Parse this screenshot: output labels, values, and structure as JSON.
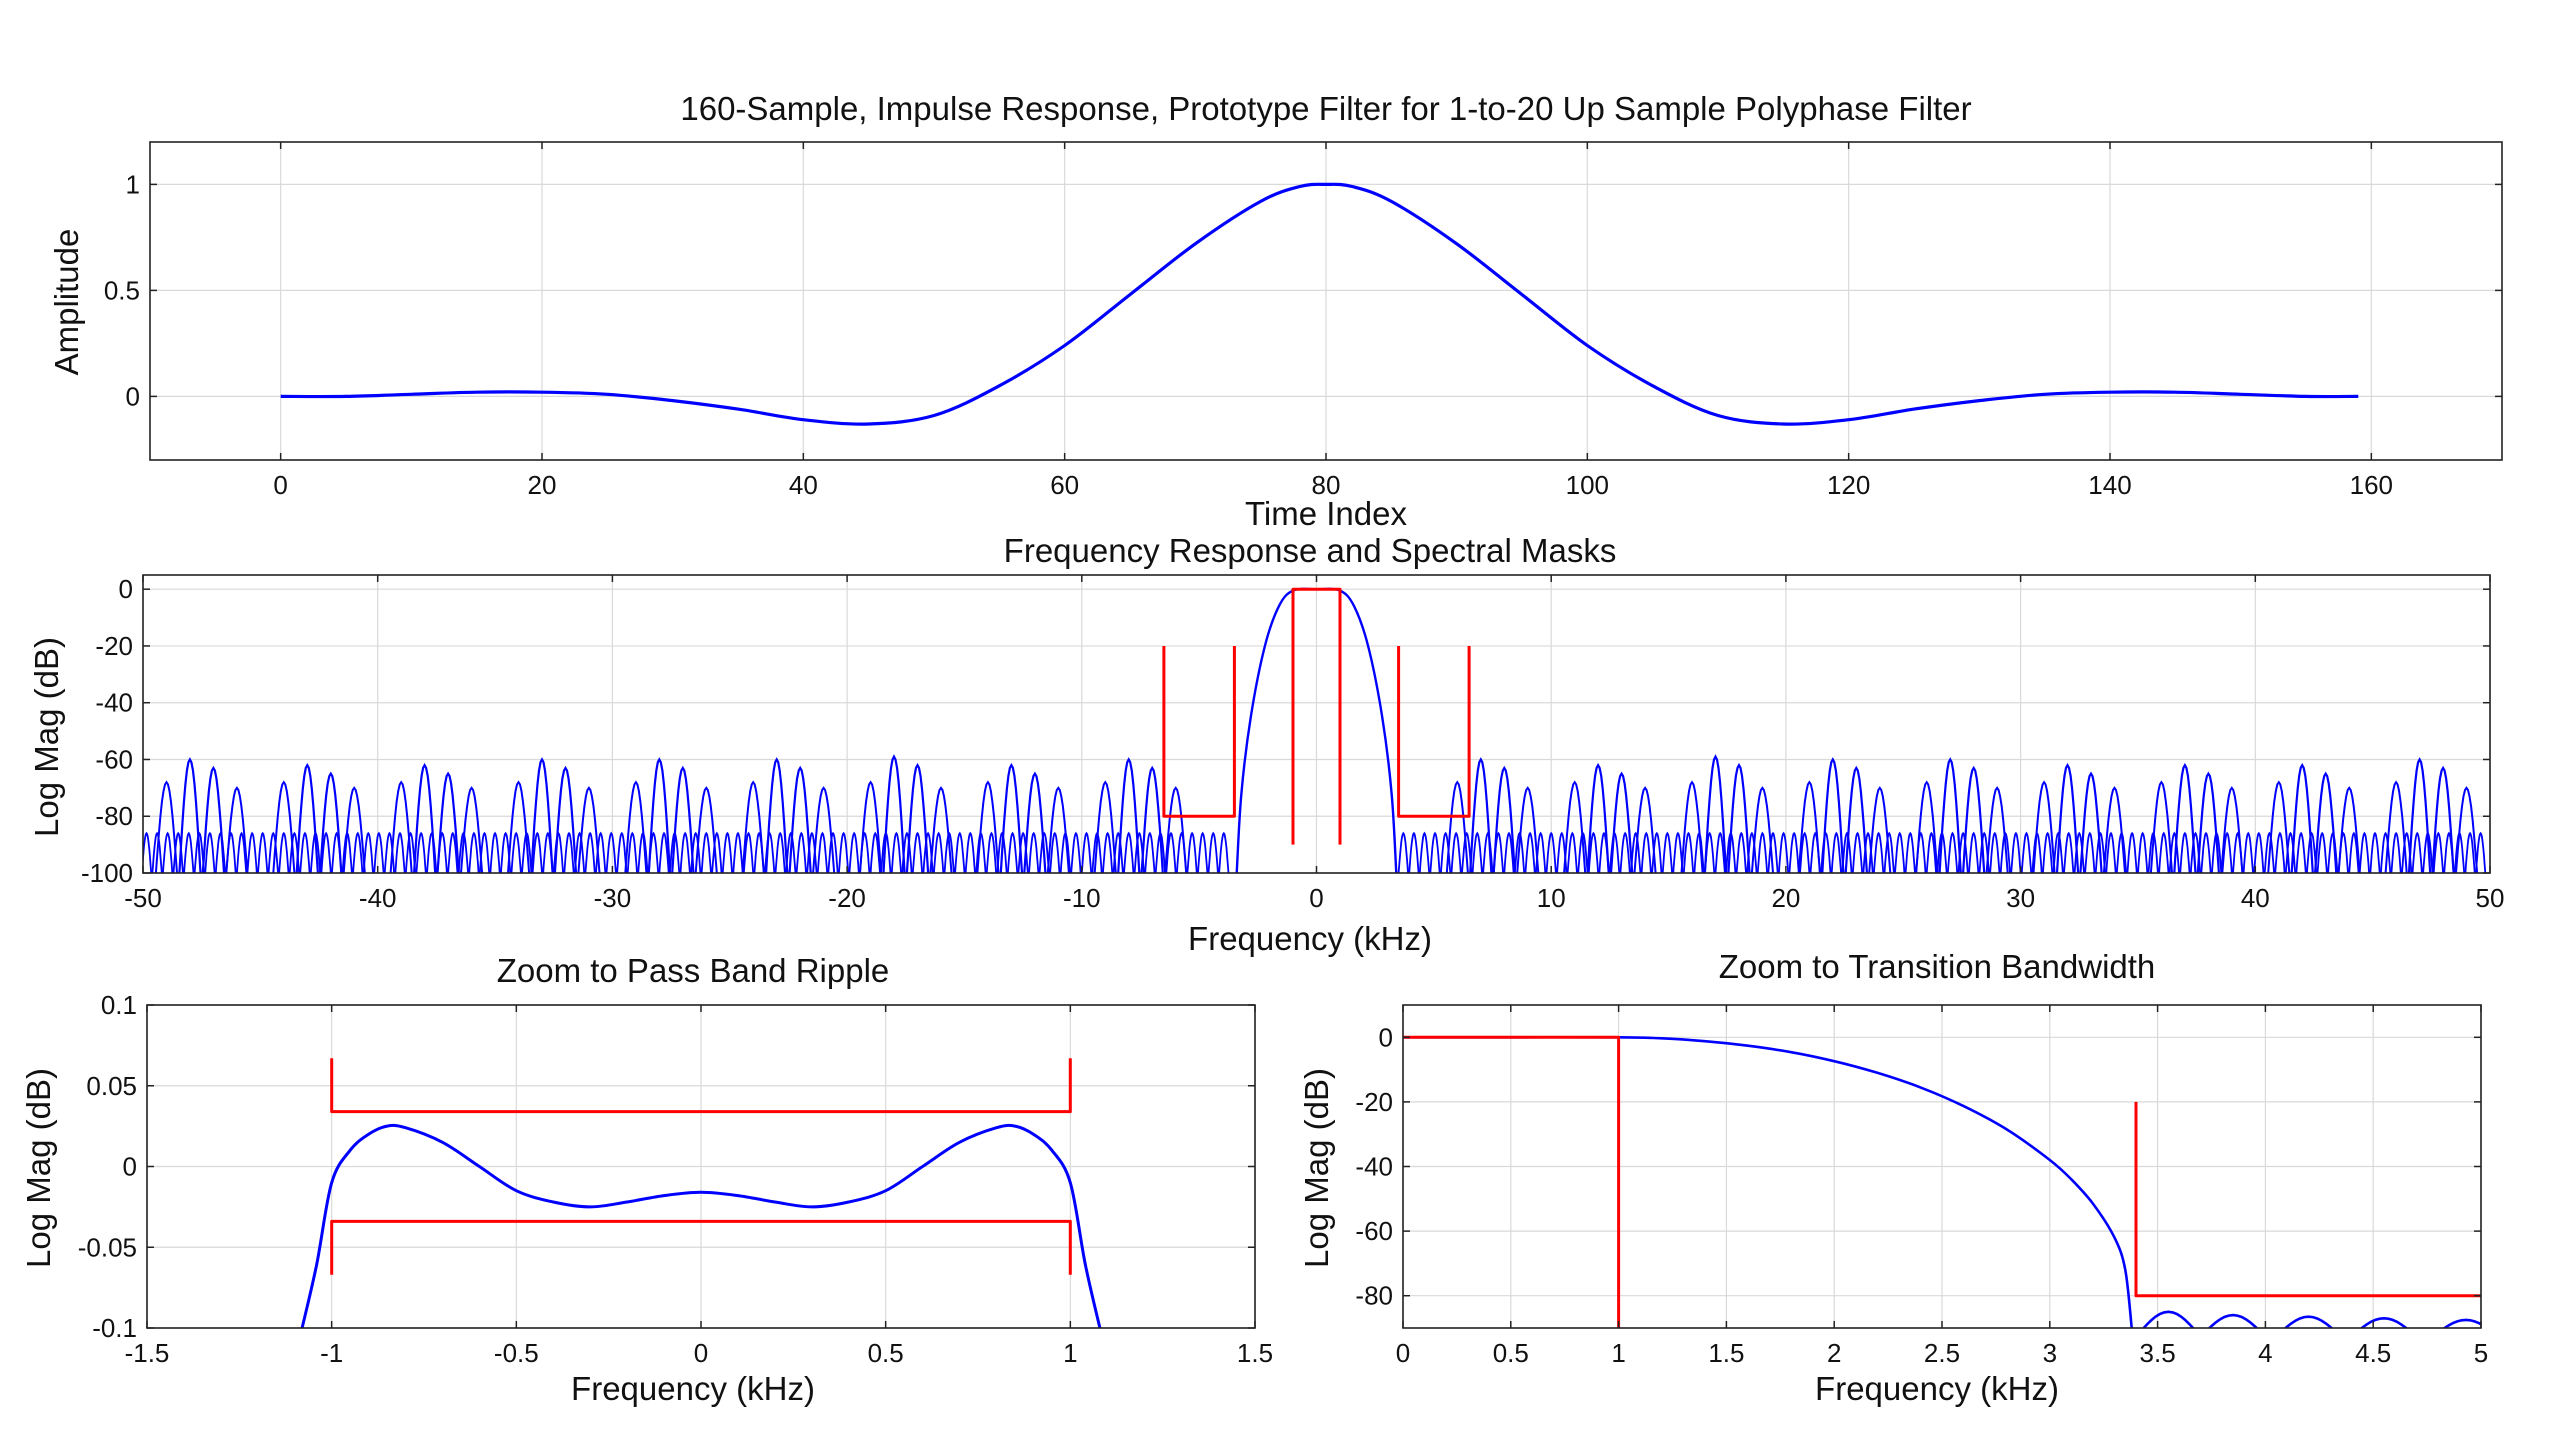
{
  "chart_data": [
    {
      "id": "impulse",
      "type": "line",
      "title": "160-Sample, Impulse Response, Prototype Filter for 1-to-20 Up Sample Polyphase Filter",
      "xlabel": "Time Index",
      "ylabel": "Amplitude",
      "xlim": [
        -10,
        170
      ],
      "ylim": [
        -0.3,
        1.2
      ],
      "xticks": [
        0,
        20,
        40,
        60,
        80,
        100,
        120,
        140,
        160
      ],
      "yticks": [
        0,
        0.5,
        1
      ],
      "ytick_labels": [
        "0",
        "0.5",
        "1"
      ],
      "grid": true,
      "color": "#0000ff",
      "series": [
        {
          "kind": "line",
          "color": "#0000ff",
          "x": [
            0,
            5,
            10,
            15,
            20,
            25,
            30,
            35,
            40,
            45,
            50,
            55,
            60,
            65,
            70,
            75,
            78,
            80,
            82,
            85,
            90,
            95,
            100,
            105,
            110,
            115,
            120,
            125,
            130,
            135,
            140,
            145,
            150,
            155,
            159
          ],
          "y": [
            0.0,
            0.0,
            0.01,
            0.02,
            0.02,
            0.01,
            -0.02,
            -0.06,
            -0.11,
            -0.13,
            -0.09,
            0.05,
            0.24,
            0.48,
            0.72,
            0.92,
            0.99,
            1.0,
            0.99,
            0.92,
            0.72,
            0.48,
            0.24,
            0.05,
            -0.09,
            -0.13,
            -0.11,
            -0.06,
            -0.02,
            0.01,
            0.02,
            0.02,
            0.01,
            0.0,
            0.0
          ]
        }
      ]
    },
    {
      "id": "freq",
      "type": "line",
      "title": "Frequency Response and Spectral Masks",
      "xlabel": "Frequency (kHz)",
      "ylabel": "Log Mag (dB)",
      "xlim": [
        -50,
        50
      ],
      "ylim": [
        -100,
        5
      ],
      "xticks": [
        -50,
        -40,
        -30,
        -20,
        -10,
        0,
        10,
        20,
        30,
        40,
        50
      ],
      "yticks": [
        -100,
        -80,
        -60,
        -40,
        -20,
        0
      ],
      "grid": true,
      "response_color": "#0000ff",
      "mask_color": "#ff0000",
      "sidelobe_peak_x": [
        -47.5,
        -42.5,
        -37.5,
        -32.5,
        -27.5,
        -22.5,
        -17.5,
        -12.5,
        -7.5,
        7.5,
        12.5,
        17.5,
        22.5,
        27.5,
        32.5,
        37.5,
        42.5,
        47.5
      ],
      "sidelobe_peak_db": [
        -60,
        -62,
        -62,
        -60,
        -60,
        -60,
        -59,
        -62,
        -60,
        -60,
        -62,
        -59,
        -60,
        -60,
        -62,
        -62,
        -62,
        -60
      ],
      "stopband_floor_db": -100,
      "masks": [
        {
          "x": [
            -6.5,
            -6.5,
            -3.5,
            -3.5
          ],
          "y": [
            -20,
            -80,
            -80,
            -20
          ]
        },
        {
          "x": [
            3.5,
            3.5,
            6.5,
            6.5
          ],
          "y": [
            -20,
            -80,
            -80,
            -20
          ]
        },
        {
          "x": [
            -1,
            -1,
            1,
            1
          ],
          "y": [
            -90,
            0,
            0,
            -90
          ]
        }
      ]
    },
    {
      "id": "passband",
      "type": "line",
      "title": "Zoom to Pass Band Ripple",
      "xlabel": "Frequency (kHz)",
      "ylabel": "Log Mag (dB)",
      "xlim": [
        -1.5,
        1.5
      ],
      "ylim": [
        -0.1,
        0.1
      ],
      "xticks": [
        -1.5,
        -1,
        -0.5,
        0,
        0.5,
        1,
        1.5
      ],
      "xtick_labels": [
        "-1.5",
        "-1",
        "-0.5",
        "0",
        "0.5",
        "1",
        "1.5"
      ],
      "yticks": [
        -0.1,
        -0.05,
        0,
        0.05,
        0.1
      ],
      "ytick_labels": [
        "-0.1",
        "-0.05",
        "0",
        "0.05",
        "0.1"
      ],
      "grid": true,
      "series": [
        {
          "kind": "line",
          "color": "#0000ff",
          "x": [
            -1.08,
            -1.04,
            -1.0,
            -0.95,
            -0.9,
            -0.85,
            -0.8,
            -0.7,
            -0.6,
            -0.5,
            -0.4,
            -0.3,
            -0.2,
            -0.1,
            0,
            0.1,
            0.2,
            0.3,
            0.4,
            0.5,
            0.6,
            0.7,
            0.8,
            0.85,
            0.9,
            0.95,
            1.0,
            1.04,
            1.08
          ],
          "y": [
            -0.1,
            -0.06,
            -0.01,
            0.01,
            0.02,
            0.025,
            0.024,
            0.015,
            0.0,
            -0.015,
            -0.022,
            -0.025,
            -0.022,
            -0.018,
            -0.016,
            -0.018,
            -0.022,
            -0.025,
            -0.022,
            -0.015,
            0.0,
            0.015,
            0.024,
            0.025,
            0.02,
            0.01,
            -0.01,
            -0.06,
            -0.1
          ]
        },
        {
          "kind": "mask",
          "color": "#ff0000",
          "x": [
            -1,
            -1,
            1,
            1
          ],
          "y": [
            0.067,
            0.034,
            0.034,
            0.067
          ]
        },
        {
          "kind": "mask",
          "color": "#ff0000",
          "x": [
            -1,
            -1,
            1,
            1
          ],
          "y": [
            -0.067,
            -0.034,
            -0.034,
            -0.067
          ]
        }
      ]
    },
    {
      "id": "transition",
      "type": "line",
      "title": "Zoom to Transition Bandwidth",
      "xlabel": "Frequency (kHz)",
      "ylabel": "Log Mag (dB)",
      "xlim": [
        0,
        5
      ],
      "ylim": [
        -90,
        10
      ],
      "xticks": [
        0,
        0.5,
        1,
        1.5,
        2,
        2.5,
        3,
        3.5,
        4,
        4.5,
        5
      ],
      "xtick_labels": [
        "0",
        "0.5",
        "1",
        "1.5",
        "2",
        "2.5",
        "3",
        "3.5",
        "4",
        "4.5",
        "5"
      ],
      "yticks": [
        -80,
        -60,
        -40,
        -20,
        0
      ],
      "grid": true,
      "series": [
        {
          "kind": "line",
          "color": "#0000ff",
          "x": [
            0,
            0.5,
            1,
            1.2,
            1.4,
            1.6,
            1.8,
            2.0,
            2.2,
            2.4,
            2.6,
            2.8,
            3.0,
            3.1,
            3.2,
            3.3,
            3.35,
            3.38
          ],
          "y": [
            0,
            0,
            0,
            -0.3,
            -1.2,
            -2.6,
            -4.6,
            -7.4,
            -11.0,
            -15.5,
            -21.3,
            -28.5,
            -38.0,
            -44.0,
            -51.5,
            -62.0,
            -72.0,
            -90.0
          ]
        },
        {
          "kind": "lobes",
          "color": "#0000ff",
          "centers": [
            3.55,
            3.85,
            4.2,
            4.55,
            4.93
          ],
          "peaks": [
            -85,
            -86,
            -86.5,
            -87,
            -87.5
          ],
          "half_width": 0.14
        },
        {
          "kind": "mask",
          "color": "#ff0000",
          "x": [
            0,
            1,
            1
          ],
          "y": [
            0,
            0,
            -90
          ]
        },
        {
          "kind": "mask",
          "color": "#ff0000",
          "x": [
            3.4,
            3.4,
            5
          ],
          "y": [
            -20,
            -80,
            -80
          ]
        }
      ]
    }
  ]
}
